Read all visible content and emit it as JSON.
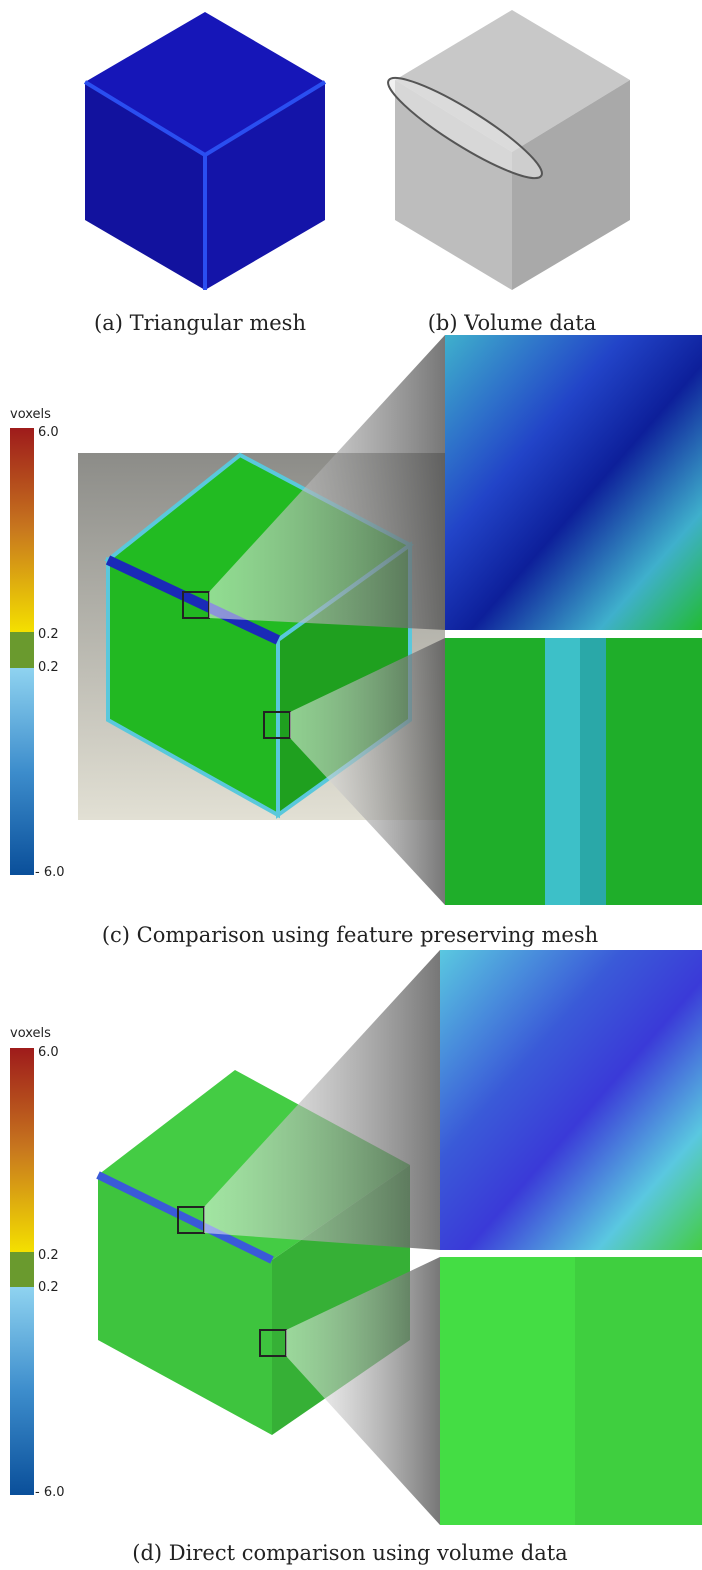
{
  "figures": [
    {
      "caption": "(a) Triangular mesh"
    },
    {
      "caption": "(b) Volume data"
    },
    {
      "caption": "(c) Comparison using feature preserving mesh",
      "colorbar": {
        "title": "voxels",
        "labels": [
          "6.0",
          "0.2",
          "0.2",
          "- 6.0"
        ]
      }
    },
    {
      "caption": "(d) Direct comparison using volume data",
      "colorbar": {
        "title": "voxels",
        "labels": [
          "6.0",
          "0.2",
          "0.2",
          "- 6.0"
        ]
      }
    }
  ]
}
